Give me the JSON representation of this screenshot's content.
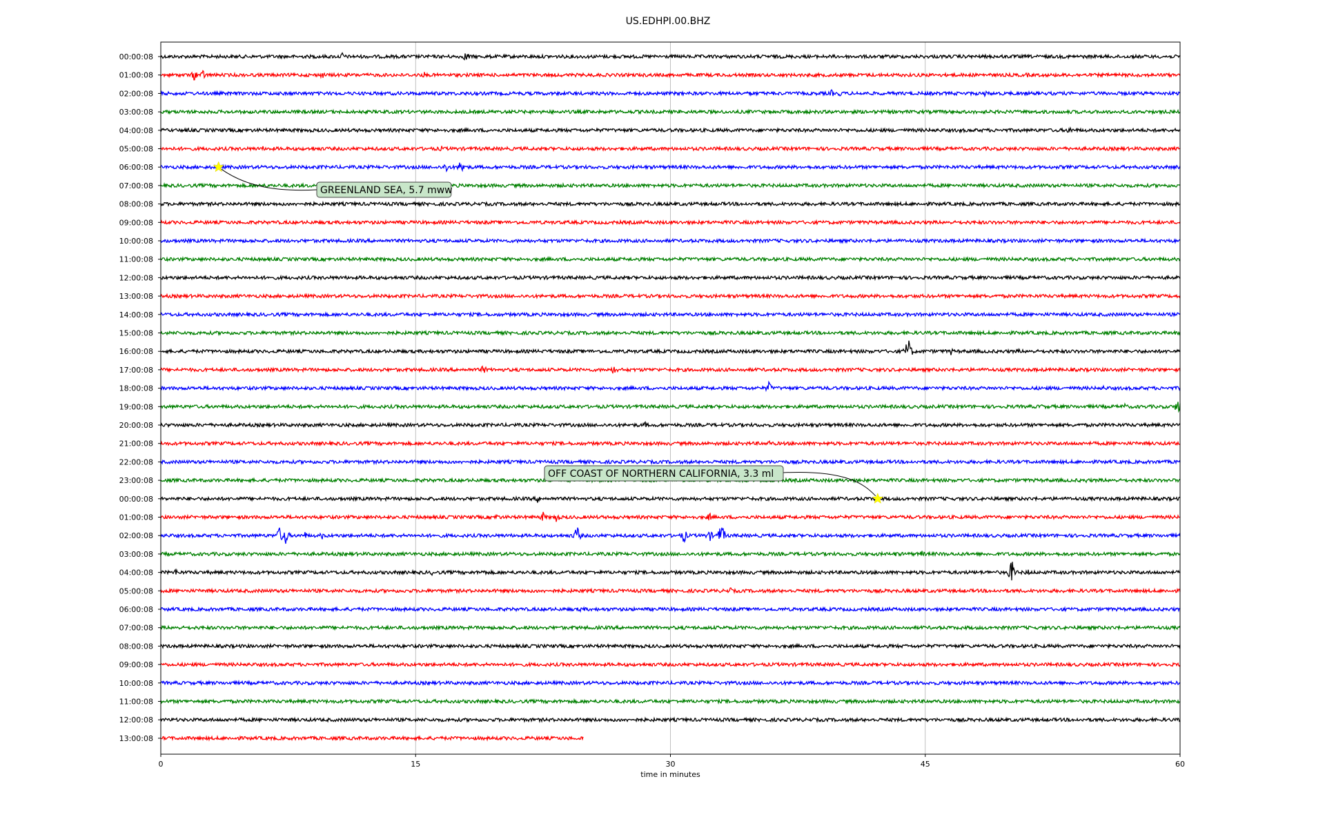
{
  "chart_data": {
    "type": "line",
    "title": "US.EDHPI.00.BHZ",
    "xlabel": "time in minutes",
    "ylabel": "",
    "xlim": [
      0,
      60
    ],
    "x_ticks": [
      "0",
      "15",
      "30",
      "45",
      "60"
    ],
    "x_tick_values": [
      0,
      15,
      30,
      45,
      60
    ],
    "grid": "vertical",
    "trace_colors": [
      "#000000",
      "#ff0000",
      "#0000ff",
      "#008000"
    ],
    "rows": [
      {
        "label": "00:00:08",
        "end": 60,
        "events": [
          [
            10.7,
            7
          ],
          [
            18,
            10
          ]
        ]
      },
      {
        "label": "01:00:08",
        "end": 60,
        "events": [
          [
            2,
            10
          ],
          [
            2.5,
            8
          ],
          [
            9.5,
            6
          ],
          [
            15.5,
            5
          ],
          [
            51,
            4
          ]
        ]
      },
      {
        "label": "02:00:08",
        "end": 60,
        "events": [
          [
            34.8,
            5
          ],
          [
            39.5,
            6
          ],
          [
            40,
            5
          ],
          [
            48.5,
            5
          ]
        ]
      },
      {
        "label": "03:00:08",
        "end": 60,
        "events": [
          [
            8.5,
            3
          ],
          [
            20.5,
            4
          ],
          [
            30.5,
            3
          ]
        ]
      },
      {
        "label": "04:00:08",
        "end": 60,
        "events": [
          [
            1.6,
            4
          ],
          [
            47,
            5
          ],
          [
            53.5,
            7
          ]
        ]
      },
      {
        "label": "05:00:08",
        "end": 60,
        "events": [
          [
            6,
            4
          ],
          [
            9,
            4
          ],
          [
            16.5,
            5
          ],
          [
            18.8,
            3
          ]
        ]
      },
      {
        "label": "06:00:08",
        "end": 60,
        "events": [
          [
            16.8,
            9
          ],
          [
            17.7,
            14
          ]
        ]
      },
      {
        "label": "07:00:08",
        "end": 60,
        "events": []
      },
      {
        "label": "08:00:08",
        "end": 60,
        "events": []
      },
      {
        "label": "09:00:08",
        "end": 60,
        "events": []
      },
      {
        "label": "10:00:08",
        "end": 60,
        "events": []
      },
      {
        "label": "11:00:08",
        "end": 60,
        "events": []
      },
      {
        "label": "12:00:08",
        "end": 60,
        "events": [
          [
            15.8,
            3
          ]
        ]
      },
      {
        "label": "13:00:08",
        "end": 60,
        "events": []
      },
      {
        "label": "14:00:08",
        "end": 60,
        "events": []
      },
      {
        "label": "15:00:08",
        "end": 60,
        "events": []
      },
      {
        "label": "16:00:08",
        "end": 60,
        "events": [
          [
            44,
            22
          ],
          [
            46.5,
            6
          ],
          [
            50.5,
            4
          ],
          [
            56,
            3
          ]
        ]
      },
      {
        "label": "17:00:08",
        "end": 60,
        "events": [
          [
            19,
            8
          ],
          [
            26.7,
            9
          ]
        ]
      },
      {
        "label": "18:00:08",
        "end": 60,
        "events": [
          [
            22.5,
            4
          ],
          [
            35.8,
            10
          ],
          [
            39.5,
            4
          ],
          [
            55.5,
            4
          ]
        ]
      },
      {
        "label": "19:00:08",
        "end": 60,
        "events": [
          [
            51.8,
            5
          ],
          [
            56.7,
            6
          ],
          [
            59.9,
            14
          ]
        ]
      },
      {
        "label": "20:00:08",
        "end": 60,
        "events": [
          [
            10.8,
            4
          ],
          [
            28.5,
            5
          ],
          [
            55.8,
            4
          ]
        ]
      },
      {
        "label": "21:00:08",
        "end": 60,
        "events": [
          [
            35.8,
            5
          ]
        ]
      },
      {
        "label": "22:00:08",
        "end": 60,
        "events": [
          [
            59,
            3
          ]
        ]
      },
      {
        "label": "23:00:08",
        "end": 60,
        "events": [
          [
            51.5,
            3
          ],
          [
            54.5,
            4
          ]
        ]
      },
      {
        "label": "00:00:08",
        "end": 60,
        "events": [
          [
            22.2,
            7
          ],
          [
            57.5,
            4
          ]
        ]
      },
      {
        "label": "01:00:08",
        "end": 60,
        "events": [
          [
            19.8,
            6
          ],
          [
            22.5,
            8
          ],
          [
            23.3,
            9
          ],
          [
            32.3,
            7
          ]
        ]
      },
      {
        "label": "02:00:08",
        "end": 60,
        "events": [
          [
            7,
            14
          ],
          [
            7.3,
            18
          ],
          [
            8.5,
            6
          ],
          [
            9.5,
            6
          ],
          [
            24.5,
            16
          ],
          [
            30.8,
            12
          ],
          [
            32.3,
            10
          ],
          [
            33,
            20
          ]
        ]
      },
      {
        "label": "03:00:08",
        "end": 60,
        "events": [
          [
            43.3,
            5
          ],
          [
            44.8,
            6
          ],
          [
            46,
            4
          ]
        ]
      },
      {
        "label": "04:00:08",
        "end": 60,
        "events": [
          [
            0.9,
            6
          ],
          [
            16,
            5
          ],
          [
            19,
            6
          ],
          [
            50.1,
            20
          ],
          [
            51,
            6
          ]
        ]
      },
      {
        "label": "05:00:08",
        "end": 60,
        "events": [
          [
            33.5,
            6
          ]
        ]
      },
      {
        "label": "06:00:08",
        "end": 60,
        "events": [
          [
            22.8,
            5
          ],
          [
            24.8,
            6
          ]
        ]
      },
      {
        "label": "07:00:08",
        "end": 60,
        "events": []
      },
      {
        "label": "08:00:08",
        "end": 60,
        "events": []
      },
      {
        "label": "09:00:08",
        "end": 60,
        "events": []
      },
      {
        "label": "10:00:08",
        "end": 60,
        "events": []
      },
      {
        "label": "11:00:08",
        "end": 60,
        "events": []
      },
      {
        "label": "12:00:08",
        "end": 60,
        "events": []
      },
      {
        "label": "13:00:08",
        "end": 24.9,
        "events": []
      }
    ],
    "annotations": [
      {
        "text": "GREENLAND SEA, 5.7 mww",
        "row": 6,
        "x": 3.4,
        "box_color": "#c8e6c9"
      },
      {
        "text": "OFF COAST OF NORTHERN CALIFORNIA, 3.3 ml",
        "row": 24,
        "x": 42.2,
        "box_color": "#c8e6c9"
      }
    ],
    "marker_color": "#ffff00"
  }
}
